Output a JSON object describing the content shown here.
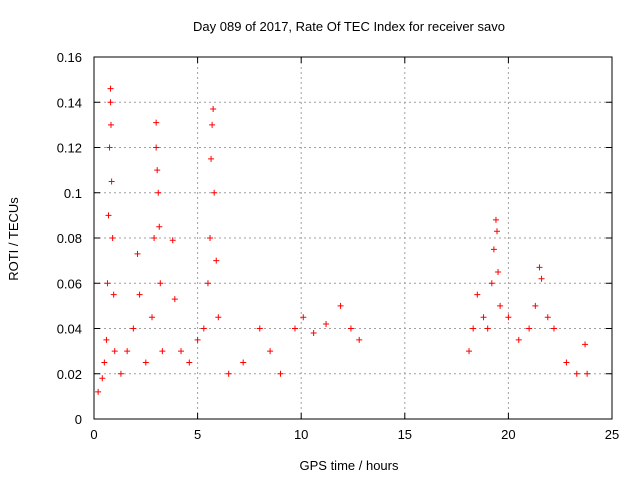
{
  "chart_data": {
    "type": "scatter",
    "title": "Day 089 of 2017, Rate Of TEC Index for receiver savo",
    "xlabel": "GPS time / hours",
    "ylabel": "ROTI / TECUs",
    "xlim": [
      0,
      25
    ],
    "ylim": [
      0,
      0.16
    ],
    "xticks": [
      0,
      5,
      10,
      15,
      20,
      25
    ],
    "xtick_labels": [
      "0",
      "5",
      "10",
      "15",
      "20",
      "25"
    ],
    "yticks": [
      0,
      0.02,
      0.04,
      0.06,
      0.08,
      0.1,
      0.12,
      0.14,
      0.16
    ],
    "ytick_labels": [
      "0",
      "0.02",
      "0.04",
      "0.06",
      "0.08",
      "0.1",
      "0.12",
      "0.14",
      "0.16"
    ],
    "grid": true,
    "marker": "plus",
    "color": "#ff0000",
    "series": [
      {
        "name": "",
        "points": [
          [
            0.2,
            0.012
          ],
          [
            0.4,
            0.018
          ],
          [
            0.5,
            0.025
          ],
          [
            0.6,
            0.035
          ],
          [
            0.65,
            0.06
          ],
          [
            0.7,
            0.09
          ],
          [
            0.75,
            0.12
          ],
          [
            0.8,
            0.146
          ],
          [
            0.8,
            0.14
          ],
          [
            0.82,
            0.13
          ],
          [
            0.85,
            0.105
          ],
          [
            0.9,
            0.08
          ],
          [
            0.95,
            0.055
          ],
          [
            1.0,
            0.03
          ],
          [
            1.3,
            0.02
          ],
          [
            1.6,
            0.03
          ],
          [
            1.9,
            0.04
          ],
          [
            2.1,
            0.073
          ],
          [
            2.2,
            0.055
          ],
          [
            2.5,
            0.025
          ],
          [
            2.8,
            0.045
          ],
          [
            2.9,
            0.08
          ],
          [
            3.0,
            0.131
          ],
          [
            3.0,
            0.12
          ],
          [
            3.05,
            0.11
          ],
          [
            3.1,
            0.1
          ],
          [
            3.15,
            0.085
          ],
          [
            3.2,
            0.06
          ],
          [
            3.3,
            0.03
          ],
          [
            3.8,
            0.079
          ],
          [
            3.9,
            0.053
          ],
          [
            4.2,
            0.03
          ],
          [
            4.6,
            0.025
          ],
          [
            5.0,
            0.035
          ],
          [
            5.3,
            0.04
          ],
          [
            5.5,
            0.06
          ],
          [
            5.6,
            0.08
          ],
          [
            5.65,
            0.115
          ],
          [
            5.7,
            0.13
          ],
          [
            5.75,
            0.137
          ],
          [
            5.8,
            0.1
          ],
          [
            5.9,
            0.07
          ],
          [
            6.0,
            0.045
          ],
          [
            6.5,
            0.02
          ],
          [
            7.2,
            0.025
          ],
          [
            8.0,
            0.04
          ],
          [
            8.5,
            0.03
          ],
          [
            9.0,
            0.02
          ],
          [
            9.7,
            0.04
          ],
          [
            10.1,
            0.045
          ],
          [
            10.6,
            0.038
          ],
          [
            11.2,
            0.042
          ],
          [
            11.9,
            0.05
          ],
          [
            12.4,
            0.04
          ],
          [
            12.8,
            0.035
          ],
          [
            18.1,
            0.03
          ],
          [
            18.3,
            0.04
          ],
          [
            18.5,
            0.055
          ],
          [
            18.8,
            0.045
          ],
          [
            19.0,
            0.04
          ],
          [
            19.2,
            0.06
          ],
          [
            19.3,
            0.075
          ],
          [
            19.4,
            0.088
          ],
          [
            19.45,
            0.083
          ],
          [
            19.5,
            0.065
          ],
          [
            19.6,
            0.05
          ],
          [
            20.0,
            0.045
          ],
          [
            20.5,
            0.035
          ],
          [
            21.0,
            0.04
          ],
          [
            21.3,
            0.05
          ],
          [
            21.5,
            0.067
          ],
          [
            21.6,
            0.062
          ],
          [
            21.9,
            0.045
          ],
          [
            22.2,
            0.04
          ],
          [
            22.8,
            0.025
          ],
          [
            23.3,
            0.02
          ],
          [
            23.7,
            0.033
          ],
          [
            23.8,
            0.02
          ]
        ]
      }
    ]
  }
}
